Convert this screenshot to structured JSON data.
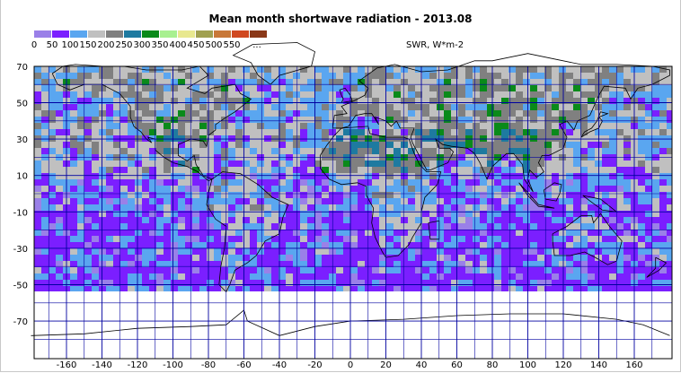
{
  "title": "Mean month shortwave radiation - 2013.08",
  "legend": {
    "labels": [
      "0",
      "50",
      "100",
      "150",
      "200",
      "250",
      "300",
      "350",
      "400",
      "450",
      "500",
      "550",
      "..."
    ],
    "colors": [
      "#9a80e8",
      "#7b1fff",
      "#5aa6f0",
      "#c0c0c0",
      "#808080",
      "#1e7aa0",
      "#0a8a1a",
      "#a8f090",
      "#e8e890",
      "#a0a050",
      "#c87838",
      "#d04820",
      "#8a3818"
    ],
    "unit": "SWR, W*m-2"
  },
  "axes": {
    "x_ticks": [
      "-160",
      "-140",
      "-120",
      "-100",
      "-80",
      "-60",
      "-40",
      "-20",
      "0",
      "20",
      "40",
      "60",
      "80",
      "100",
      "120",
      "140",
      "160"
    ],
    "y_ticks": [
      "70",
      "50",
      "30",
      "10",
      "-10",
      "-30",
      "-50",
      "-70"
    ]
  },
  "grid_color": "#0000a0"
}
